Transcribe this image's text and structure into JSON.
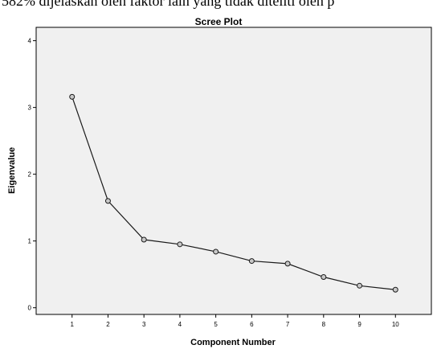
{
  "page_top_text": "582% dijelaskan oleh faktor lain yang tidak diteliti oleh p",
  "chart_data": {
    "type": "line",
    "title": "Scree Plot",
    "xlabel": "Component Number",
    "ylabel": "Eigenvalue",
    "categories": [
      "1",
      "2",
      "3",
      "4",
      "5",
      "6",
      "7",
      "8",
      "9",
      "10"
    ],
    "x": [
      1,
      2,
      3,
      4,
      5,
      6,
      7,
      8,
      9,
      10
    ],
    "values": [
      3.16,
      1.6,
      1.02,
      0.95,
      0.84,
      0.7,
      0.66,
      0.46,
      0.33,
      0.27
    ],
    "xlim": [
      0,
      11
    ],
    "ylim": [
      -0.1,
      4.2
    ],
    "yticks": [
      0,
      1,
      2,
      3,
      4
    ],
    "grid": false,
    "legend": "none",
    "colors": {
      "plot_background": "#f0f0f0",
      "line": "#1a1a1a",
      "marker_fill": "#c8c8c8",
      "axis": "#000000"
    }
  }
}
